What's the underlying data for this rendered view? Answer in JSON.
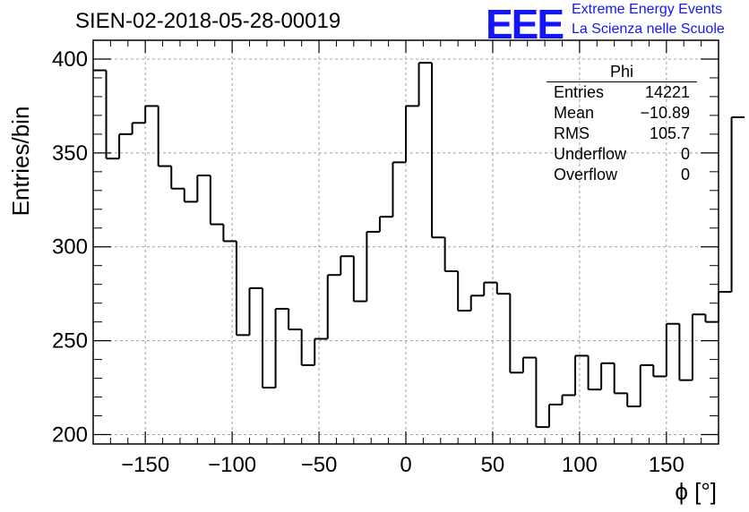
{
  "header": {
    "title": "SIEN-02-2018-05-28-00019",
    "logo_text": "EEE",
    "logo_line1": "Extreme Energy Events",
    "logo_line2": "La Scienza nelle Scuole"
  },
  "stats_box": {
    "title": "Phi",
    "rows": [
      {
        "label": "Entries",
        "value": "14221"
      },
      {
        "label": "Mean",
        "value": "−10.89"
      },
      {
        "label": "RMS",
        "value": "105.7"
      },
      {
        "label": "Underflow",
        "value": "0"
      },
      {
        "label": "Overflow",
        "value": "0"
      }
    ]
  },
  "colors": {
    "accent": "#1414ff",
    "line": "#000000",
    "grid": "#a0a0a0"
  },
  "chart_data": {
    "type": "histogram",
    "title": "SIEN-02-2018-05-28-00019",
    "xlabel": "ϕ [°]",
    "ylabel": "Entries/bin",
    "xlim": [
      -180,
      180
    ],
    "ylim": [
      195,
      410
    ],
    "xticks": [
      -150,
      -100,
      -50,
      0,
      50,
      100,
      150
    ],
    "xtick_labels": [
      "−150",
      "−100",
      "−50",
      "0",
      "50",
      "100",
      "150"
    ],
    "yticks": [
      200,
      250,
      300,
      350,
      400
    ],
    "grid": true,
    "bin_edges_start": -180,
    "bin_width": 7.5,
    "counts": [
      394,
      347,
      360,
      366,
      375,
      343,
      331,
      324,
      338,
      312,
      303,
      253,
      278,
      225,
      267,
      256,
      237,
      251,
      285,
      295,
      271,
      308,
      316,
      345,
      375,
      398,
      305,
      287,
      266,
      274,
      281,
      275,
      233,
      241,
      204,
      216,
      221,
      242,
      224,
      238,
      222,
      215,
      237,
      231,
      259,
      229,
      264,
      260,
      276,
      369
    ]
  }
}
